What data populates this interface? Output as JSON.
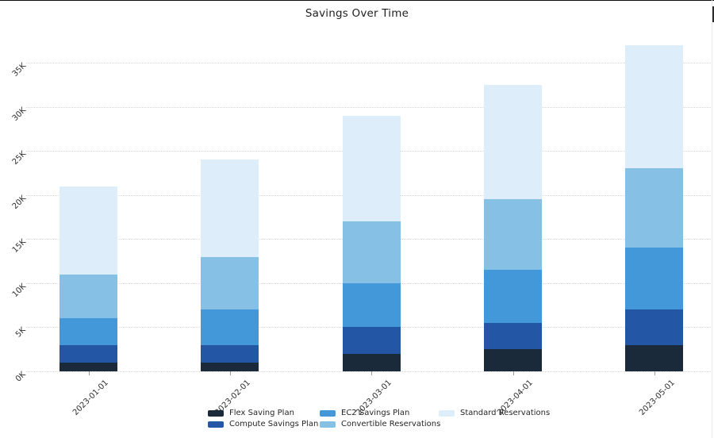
{
  "page": {
    "title": "Savings Over Time"
  },
  "chart_data": {
    "type": "bar",
    "stacked": true,
    "title": "Savings Over Time",
    "xlabel": "",
    "ylabel": "",
    "grid": "horizontal-dotted",
    "legend_position": "bottom",
    "legend_columns": 3,
    "categories": [
      "2023-01-01",
      "2023-02-01",
      "2023-03-01",
      "2023-04-01",
      "2023-05-01"
    ],
    "series": [
      {
        "name": "Flex Saving Plan",
        "color": "#1b2a3a",
        "values": [
          1000,
          1000,
          2000,
          2500,
          3000
        ]
      },
      {
        "name": "Compute Savings Plan",
        "color": "#2356a4",
        "values": [
          2000,
          2000,
          3000,
          3000,
          4000
        ]
      },
      {
        "name": "EC2 Savings Plan",
        "color": "#4398d9",
        "values": [
          3000,
          4000,
          5000,
          6000,
          7000
        ]
      },
      {
        "name": "Convertible Reservations",
        "color": "#86c0e4",
        "values": [
          5000,
          6000,
          7000,
          8000,
          9000
        ]
      },
      {
        "name": "Standard Reservations",
        "color": "#ddedf9",
        "values": [
          10000,
          11000,
          12000,
          13000,
          14000
        ]
      }
    ],
    "totals": [
      21000,
      24000,
      29000,
      32500,
      37000
    ],
    "y_axis": {
      "tick_values": [
        0,
        5000,
        10000,
        15000,
        20000,
        25000,
        30000,
        35000
      ],
      "tick_labels": [
        "0K",
        "5K",
        "10K",
        "15K",
        "20K",
        "25K",
        "30K",
        "35K"
      ],
      "range": [
        0,
        35000
      ]
    }
  },
  "colors": {
    "background": "#ffffff",
    "gridline": "#d6d6d6",
    "tick": "#9a9a9a",
    "label_text": "#2e2e2e",
    "title_text": "#1f1f1f",
    "top_border": "#0d0d0d"
  }
}
